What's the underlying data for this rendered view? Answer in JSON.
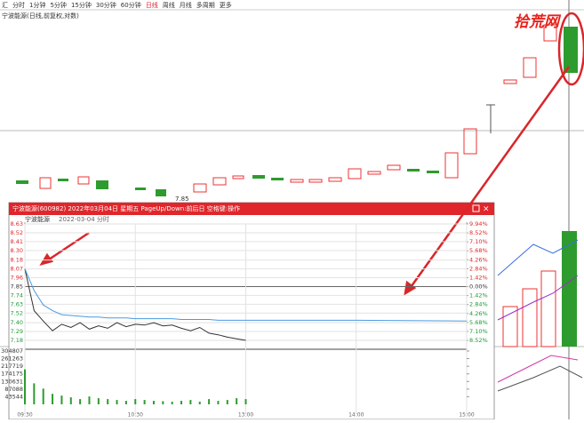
{
  "toolbar": [
    "汇",
    "分时",
    "1分钟",
    "5分钟",
    "15分钟",
    "30分钟",
    "60分钟",
    "日线",
    "周线",
    "月线",
    "多周期",
    "更多"
  ],
  "active_tab": "日线",
  "subtitle": "宁波能源(日线,前复权,对数)",
  "watermark": "拾荒网",
  "low_label": "7.85",
  "window_title": "宁波能源(600982) 2022年03月04日 星期五 PageUp/Down:前后日 空格键:操作",
  "window_header": "宁波能源",
  "window_subheader": "2022-03-04 分时",
  "chart_data": [
    {
      "type": "line",
      "x": [
        0,
        5,
        10,
        15,
        20,
        25,
        30,
        35,
        40,
        45,
        50,
        55,
        60,
        65,
        70,
        75,
        80,
        85,
        90,
        95,
        100,
        105,
        110,
        115,
        120,
        180,
        240
      ],
      "xlim": [
        0,
        240
      ],
      "xticks": [
        {
          "value": 0,
          "label": "09:30"
        },
        {
          "value": 60,
          "label": "10:30"
        },
        {
          "value": 120,
          "label": "13:00"
        },
        {
          "value": 180,
          "label": "14:00"
        },
        {
          "value": 240,
          "label": "15:00"
        }
      ],
      "ylim": [
        7.18,
        8.63
      ],
      "yticks": [
        8.63,
        8.52,
        8.41,
        {
          "value": 8.3,
          "label": "8.30"
        },
        8.18,
        8.07,
        7.96,
        7.85,
        7.74,
        7.63,
        7.52,
        {
          "value": 7.4,
          "label": "7.40"
        },
        7.29,
        7.18
      ],
      "y2lim": [
        -8.52,
        9.94
      ],
      "y2ticks": [
        {
          "value": 9.94,
          "label": "9.94%"
        },
        {
          "value": 8.52,
          "label": "8.52%"
        },
        {
          "value": 7.1,
          "label": "7.10%"
        },
        {
          "value": 5.68,
          "label": "5.68%"
        },
        {
          "value": 4.26,
          "label": "4.26%"
        },
        {
          "value": 2.84,
          "label": "2.84%"
        },
        {
          "value": 1.42,
          "label": "1.42%"
        },
        {
          "value": 0,
          "label": "0.00%"
        },
        {
          "value": -1.42,
          "label": "1.42%"
        },
        {
          "value": -2.84,
          "label": "2.84%"
        },
        {
          "value": -4.26,
          "label": "4.26%"
        },
        {
          "value": -5.68,
          "label": "5.68%"
        },
        {
          "value": -7.1,
          "label": "7.10%"
        },
        {
          "value": -8.52,
          "label": "8.52%"
        }
      ],
      "grid": true,
      "series": [
        {
          "color": "#333333",
          "values": [
            8.07,
            7.55,
            7.42,
            7.3,
            7.38,
            7.34,
            7.4,
            7.32,
            7.36,
            7.33,
            7.4,
            7.35,
            7.38,
            7.37,
            7.4,
            7.36,
            7.37,
            7.33,
            7.3,
            7.34,
            7.27,
            7.25,
            7.22,
            7.2,
            7.18,
            null,
            null
          ]
        },
        {
          "color": "#4a9be0",
          "values": [
            8.07,
            7.8,
            7.62,
            7.55,
            7.5,
            7.49,
            7.48,
            7.47,
            7.47,
            7.46,
            7.46,
            7.46,
            7.45,
            7.45,
            7.45,
            7.45,
            7.45,
            7.44,
            7.44,
            7.44,
            7.44,
            7.43,
            7.43,
            7.43,
            7.43,
            7.43,
            7.42
          ]
        }
      ]
    },
    {
      "type": "bar",
      "x": [
        0,
        5,
        10,
        15,
        20,
        25,
        30,
        35,
        40,
        45,
        50,
        55,
        60,
        65,
        70,
        75,
        80,
        85,
        90,
        95,
        100,
        105,
        110,
        115,
        120
      ],
      "xlim": [
        0,
        240
      ],
      "ylim": [
        0,
        304807
      ],
      "yticks": [
        304807,
        261263,
        217719,
        174175,
        130631,
        87088,
        43544
      ],
      "color": "#2e9b2e",
      "values": [
        200000,
        120000,
        90000,
        60000,
        50000,
        40000,
        30000,
        45000,
        35000,
        30000,
        25000,
        20000,
        30000,
        25000,
        20000,
        18000,
        15000,
        20000,
        25000,
        15000,
        30000,
        20000,
        25000,
        35000,
        30000
      ]
    }
  ]
}
